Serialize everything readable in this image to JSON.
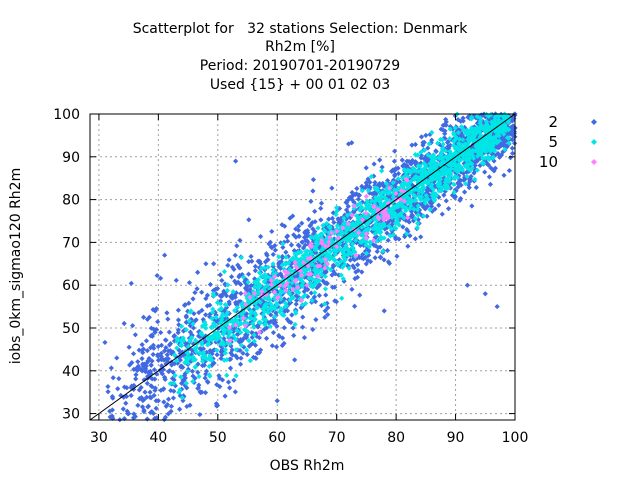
{
  "chart_data": {
    "type": "scatter",
    "title": [
      "Scatterplot for   32 stations Selection: Denmark",
      "Rh2m [%]",
      "Period: 20190701-20190729",
      "Used {15} + 00 01 02 03"
    ],
    "xlabel": "OBS Rh2m",
    "ylabel": "iobs_0km_sigmao120 Rh2m",
    "xlim": [
      28.5,
      100
    ],
    "ylim": [
      28.5,
      100
    ],
    "xticks": [
      "30",
      "40",
      "50",
      "60",
      "70",
      "80",
      "90",
      "100"
    ],
    "yticks": [
      "30",
      "40",
      "50",
      "60",
      "70",
      "80",
      "90",
      "100"
    ],
    "grid": true,
    "diagonal": true,
    "legend_position": "right",
    "series": [
      {
        "name": "2",
        "color": "#4169e1",
        "marker": "diamond",
        "cloud": {
          "n": 2400,
          "x_range": [
            31,
            100
          ],
          "spread": 7.5,
          "seed": 11
        }
      },
      {
        "name": "5",
        "color": "#00e5e5",
        "marker": "diamond",
        "cloud": {
          "n": 1500,
          "x_range": [
            42,
            99
          ],
          "spread": 4.8,
          "seed": 23
        }
      },
      {
        "name": "10",
        "color": "#ff7fff",
        "marker": "diamond",
        "cloud": {
          "n": 90,
          "x_range": [
            50,
            82
          ],
          "spread": 3.5,
          "seed": 37
        }
      }
    ],
    "sample_points": {
      "2": [
        [
          33,
          43
        ],
        [
          35,
          30
        ],
        [
          38,
          47
        ],
        [
          40,
          33
        ],
        [
          41,
          28.6
        ],
        [
          48,
          65
        ],
        [
          53,
          89
        ],
        [
          57,
          60
        ],
        [
          60,
          33
        ],
        [
          52,
          36
        ],
        [
          66,
          82
        ],
        [
          72,
          93
        ],
        [
          78,
          54
        ],
        [
          85,
          95
        ],
        [
          92,
          60
        ],
        [
          95,
          58
        ],
        [
          97,
          55
        ],
        [
          98,
          93
        ],
        [
          100,
          100
        ],
        [
          47,
          48
        ],
        [
          55,
          57
        ],
        [
          62,
          63
        ],
        [
          68,
          69
        ],
        [
          74,
          75
        ],
        [
          82,
          84
        ],
        [
          88,
          89
        ]
      ],
      "5": [
        [
          42,
          37
        ],
        [
          45,
          44
        ],
        [
          50,
          48
        ],
        [
          55,
          55
        ],
        [
          60,
          61
        ],
        [
          65,
          66
        ],
        [
          70,
          73
        ],
        [
          75,
          76
        ],
        [
          80,
          82
        ],
        [
          85,
          88
        ],
        [
          90,
          91
        ],
        [
          95,
          96
        ],
        [
          99,
          99
        ]
      ],
      "10": [
        [
          52,
          47
        ],
        [
          57,
          49
        ],
        [
          60,
          57
        ],
        [
          63,
          61
        ],
        [
          65,
          60
        ],
        [
          68,
          64
        ],
        [
          70,
          69
        ],
        [
          73,
          73
        ],
        [
          75,
          72
        ],
        [
          78,
          76
        ],
        [
          80,
          80
        ]
      ]
    }
  }
}
